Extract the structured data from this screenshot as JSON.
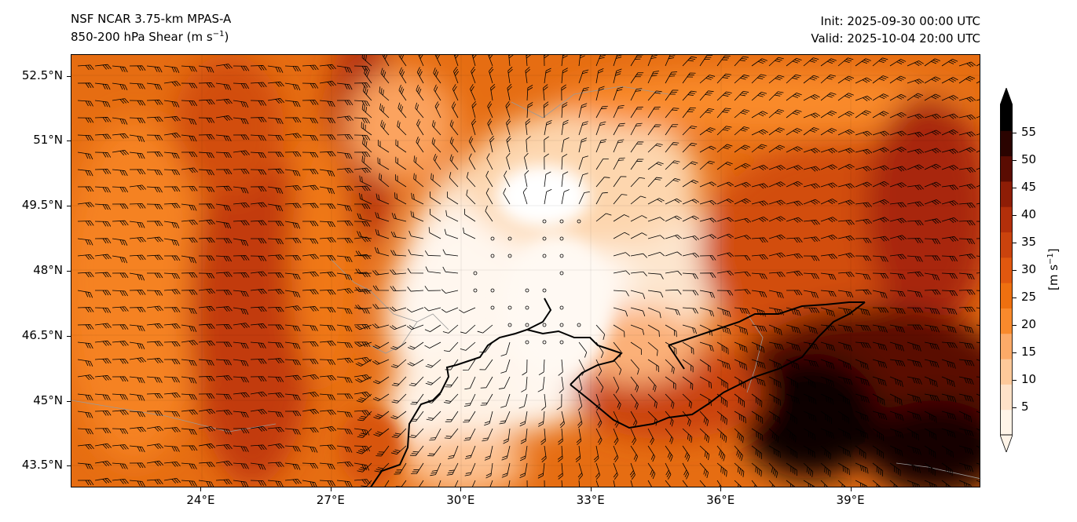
{
  "header": {
    "model": "NSF NCAR 3.75-km MPAS-A",
    "field": "850-200 hPa Shear (m s",
    "field_exp": "−1",
    "field_close": ")",
    "init": "Init: 2025-09-30 00:00 UTC",
    "valid": "Valid: 2025-10-04 20:00 UTC"
  },
  "map": {
    "lat_labels": [
      "52.5°N",
      "51°N",
      "49.5°N",
      "48°N",
      "46.5°N",
      "45°N",
      "43.5°N"
    ],
    "lon_labels": [
      "24°E",
      "27°E",
      "30°E",
      "33°E",
      "36°E",
      "39°E"
    ],
    "lat_values": [
      52.5,
      51,
      49.5,
      48,
      46.5,
      45,
      43.5
    ],
    "lon_values": [
      24,
      27,
      30,
      33,
      36,
      39
    ],
    "extent": {
      "lon": [
        21,
        42
      ],
      "lat": [
        43,
        53
      ]
    },
    "calm_symbol": "circle",
    "barbs": "wind-barb-icon"
  },
  "colorbar": {
    "ticks": [
      "5",
      "10",
      "15",
      "20",
      "25",
      "30",
      "35",
      "40",
      "45",
      "50",
      "55"
    ],
    "values": [
      5,
      10,
      15,
      20,
      25,
      30,
      35,
      40,
      45,
      50,
      55
    ],
    "title": "[m s",
    "title_exp": "−1",
    "title_close": "]",
    "colors": [
      "#fff4e8",
      "#fee2c8",
      "#fdc99a",
      "#fcaa68",
      "#f98a2c",
      "#ee7010",
      "#e0580f",
      "#ca430d",
      "#b22f0a",
      "#8e1d06",
      "#5a0c02",
      "#2a0300",
      "#000000"
    ]
  }
}
